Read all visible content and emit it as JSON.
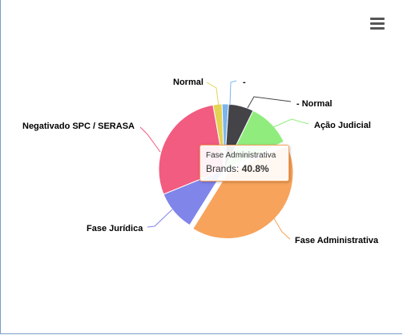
{
  "chart_data": {
    "type": "pie",
    "series_name": "Brands",
    "slices": [
      {
        "label": "Normal",
        "value": 2.2,
        "color": "#e4d354"
      },
      {
        "label": "-",
        "value": 1.6,
        "color": "#7cb5ec"
      },
      {
        "label": "- Normal",
        "value": 6.2,
        "color": "#434348"
      },
      {
        "label": "Ação Judicial",
        "value": 10.8,
        "color": "#90ed7d"
      },
      {
        "label": "Fase Administrativa",
        "value": 40.8,
        "color": "#f7a35c"
      },
      {
        "label": "Fase Jurídica",
        "value": 10.0,
        "color": "#8085e9"
      },
      {
        "label": "Negativado SPC / SERASA",
        "value": 28.4,
        "color": "#f15c80"
      }
    ],
    "tooltip": {
      "title": "Fase Administrativa",
      "series": "Brands:",
      "value": "40.8%"
    }
  },
  "menu": {
    "icon": "hamburger-menu-icon"
  }
}
